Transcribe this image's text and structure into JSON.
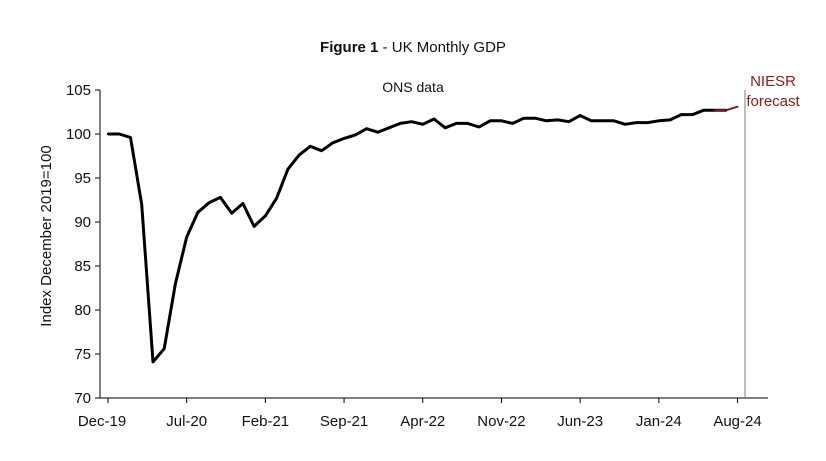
{
  "chart_data": {
    "type": "line",
    "title_bold": "Figure 1",
    "title_rest": " - UK Monthly GDP",
    "xlabel": "",
    "ylabel": "Index December 2019=100",
    "ylim": [
      70,
      105
    ],
    "yticks": [
      70,
      75,
      80,
      85,
      90,
      95,
      100,
      105
    ],
    "xtick_labels": [
      "Dec-19",
      "Jul-20",
      "Feb-21",
      "Sep-21",
      "Apr-22",
      "Nov-22",
      "Jun-23",
      "Jan-24",
      "Aug-24"
    ],
    "xtick_month_index": [
      0,
      7,
      14,
      21,
      28,
      35,
      42,
      49,
      56
    ],
    "x_range_months": [
      0,
      58
    ],
    "annotations": {
      "ons": "ONS data",
      "forecast_line1": "NIESR",
      "forecast_line2": "forecast"
    },
    "forecast_start_index": 55,
    "colors": {
      "ons": "#000000",
      "forecast": "#8b1a1a",
      "divider": "#7f7f7f"
    },
    "series": [
      {
        "name": "ONS data",
        "start": "Dec-19",
        "values": [
          100.0,
          100.0,
          99.6,
          92.0,
          74.1,
          75.6,
          83.0,
          88.3,
          91.1,
          92.2,
          92.8,
          91.0,
          92.1,
          89.5,
          90.7,
          92.7,
          96.0,
          97.6,
          98.6,
          98.1,
          99.0,
          99.5,
          99.9,
          100.6,
          100.2,
          100.7,
          101.2,
          101.4,
          101.1,
          101.7,
          100.7,
          101.2,
          101.2,
          100.8,
          101.5,
          101.5,
          101.2,
          101.8,
          101.8,
          101.5,
          101.6,
          101.4,
          102.1,
          101.5,
          101.5,
          101.5,
          101.1,
          101.3,
          101.3,
          101.5,
          101.6,
          102.2,
          102.2,
          102.7,
          102.7,
          102.7
        ]
      },
      {
        "name": "NIESR forecast",
        "start": "Jun-24",
        "values": [
          102.7,
          102.7,
          103.1
        ]
      }
    ]
  }
}
